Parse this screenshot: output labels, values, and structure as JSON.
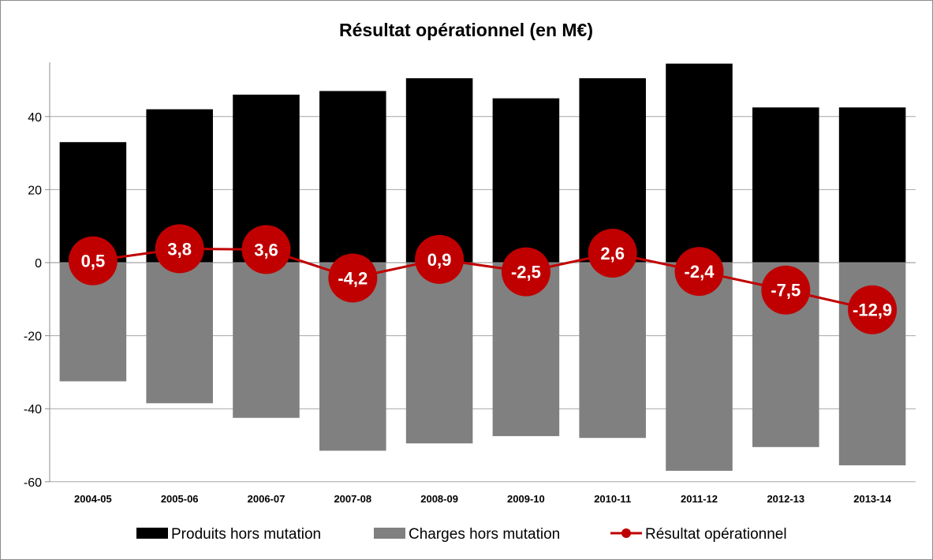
{
  "chart_data": {
    "type": "bar",
    "title": "Résultat opérationnel (en M€)",
    "categories": [
      "2004-05",
      "2005-06",
      "2006-07",
      "2007-08",
      "2008-09",
      "2009-10",
      "2010-11",
      "2011-12",
      "2012-13",
      "2013-14"
    ],
    "series": [
      {
        "name": "Produits hors mutation",
        "type": "bar",
        "color": "#000000",
        "values": [
          33,
          42,
          46,
          47,
          50.5,
          45,
          50.5,
          54.5,
          42.5,
          42.5
        ]
      },
      {
        "name": "Charges hors mutation",
        "type": "bar",
        "color": "#808080",
        "values": [
          -32.5,
          -38.5,
          -42.5,
          -51.5,
          -49.5,
          -47.5,
          -48,
          -57,
          -50.5,
          -55.5
        ]
      },
      {
        "name": "Résultat opérationnel",
        "type": "line",
        "color": "#c00000",
        "values": [
          0.5,
          3.8,
          3.6,
          -4.2,
          0.9,
          -2.5,
          2.6,
          -2.4,
          -7.5,
          -12.9
        ],
        "labels": [
          "0,5",
          "3,8",
          "3,6",
          "-4,2",
          "0,9",
          "-2,5",
          "2,6",
          "-2,4",
          "-7,5",
          "-12,9"
        ]
      }
    ],
    "ylim": [
      -60,
      55
    ],
    "yticks": [
      -60,
      -40,
      -20,
      0,
      20,
      40
    ],
    "grid": true,
    "legend_position": "bottom"
  }
}
